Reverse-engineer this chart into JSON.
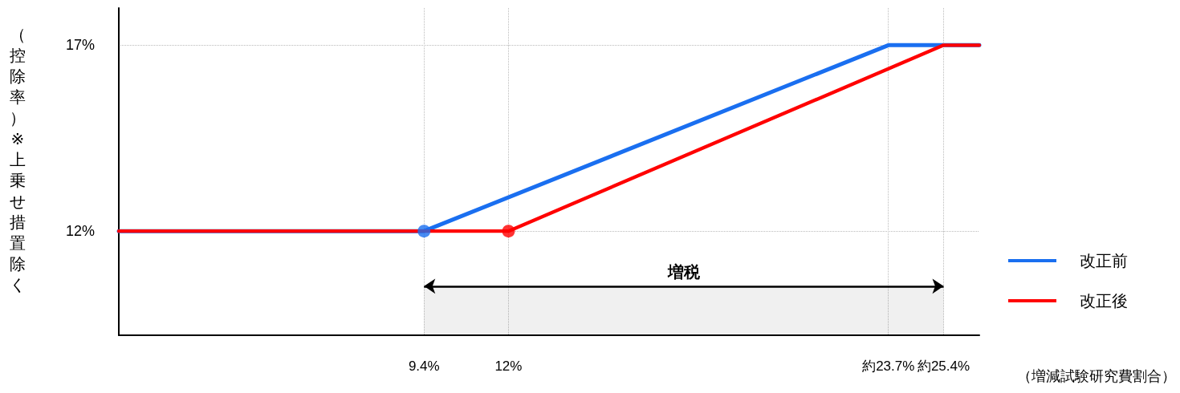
{
  "chart_data": {
    "type": "line",
    "xlabel": "（増減試験研究費割合）",
    "ylabel": "（控除率）※上乗せ措置除く",
    "series": [
      {
        "name": "改正前",
        "color": "#1a6ff0",
        "x": [
          0,
          9.4,
          23.7,
          26.5
        ],
        "values": [
          12,
          12,
          17,
          17
        ]
      },
      {
        "name": "改正後",
        "color": "#ff0000",
        "x": [
          0,
          12,
          25.4,
          26.5
        ],
        "values": [
          12,
          12,
          17,
          17
        ]
      },
      {
        "type": "scatter",
        "color": "#1a6ff0",
        "x": [
          9.4
        ],
        "values": [
          12
        ],
        "marker": "circle"
      },
      {
        "type": "scatter",
        "color": "#ff0000",
        "x": [
          12
        ],
        "values": [
          12
        ],
        "marker": "circle"
      }
    ],
    "xlim": [
      0,
      26.5
    ],
    "xticks": [
      {
        "value": 9.4,
        "label": "9.4%"
      },
      {
        "value": 12,
        "label": "12%"
      },
      {
        "value": 23.7,
        "label": "約23.7%"
      },
      {
        "value": 25.4,
        "label": "約25.4%"
      }
    ],
    "ylim": [
      9.2,
      18
    ],
    "yticks": [
      {
        "value": 12,
        "label": "12%"
      },
      {
        "value": 17,
        "label": "17%"
      }
    ],
    "bands": [
      {
        "axis": "x",
        "from": 9.4,
        "to": 25.4,
        "label": "増税"
      }
    ],
    "grid": true,
    "legend": "right",
    "marker": "none",
    "line_style": "solid"
  }
}
